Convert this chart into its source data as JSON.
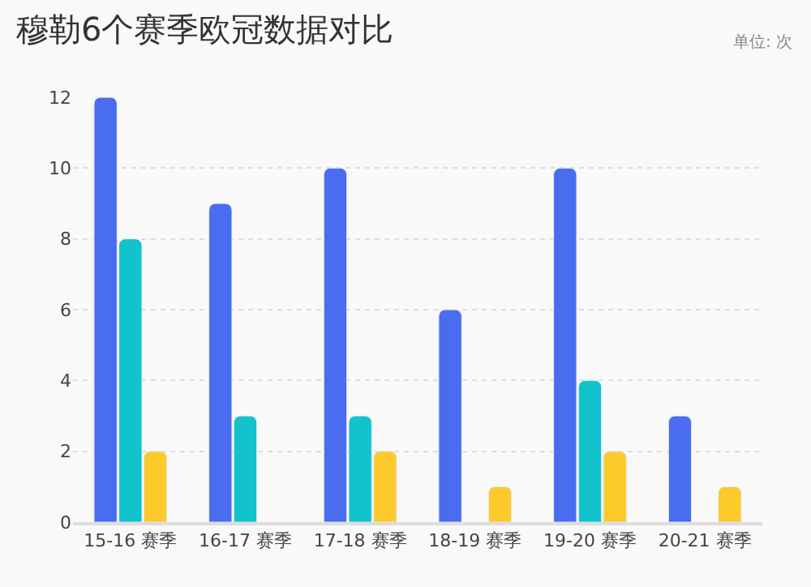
{
  "chart_data": {
    "type": "bar",
    "title": "穆勒6个赛季欧冠数据对比",
    "annotations": [
      "单位: 次"
    ],
    "categories": [
      "15-16 赛季",
      "16-17 赛季",
      "17-18 赛季",
      "18-19 赛季",
      "19-20 赛季",
      "20-21 赛季"
    ],
    "series": [
      {
        "color": "#4a6cf0",
        "values": [
          12,
          9,
          10,
          6,
          10,
          3
        ]
      },
      {
        "color": "#12c2cc",
        "values": [
          8,
          3,
          3,
          null,
          4,
          null
        ]
      },
      {
        "color": "#fcca2a",
        "values": [
          2,
          null,
          2,
          1,
          2,
          1
        ]
      }
    ],
    "ylim": [
      0,
      12
    ],
    "yticks": [
      0,
      2,
      4,
      6,
      8,
      10,
      12
    ],
    "grid": "y"
  }
}
